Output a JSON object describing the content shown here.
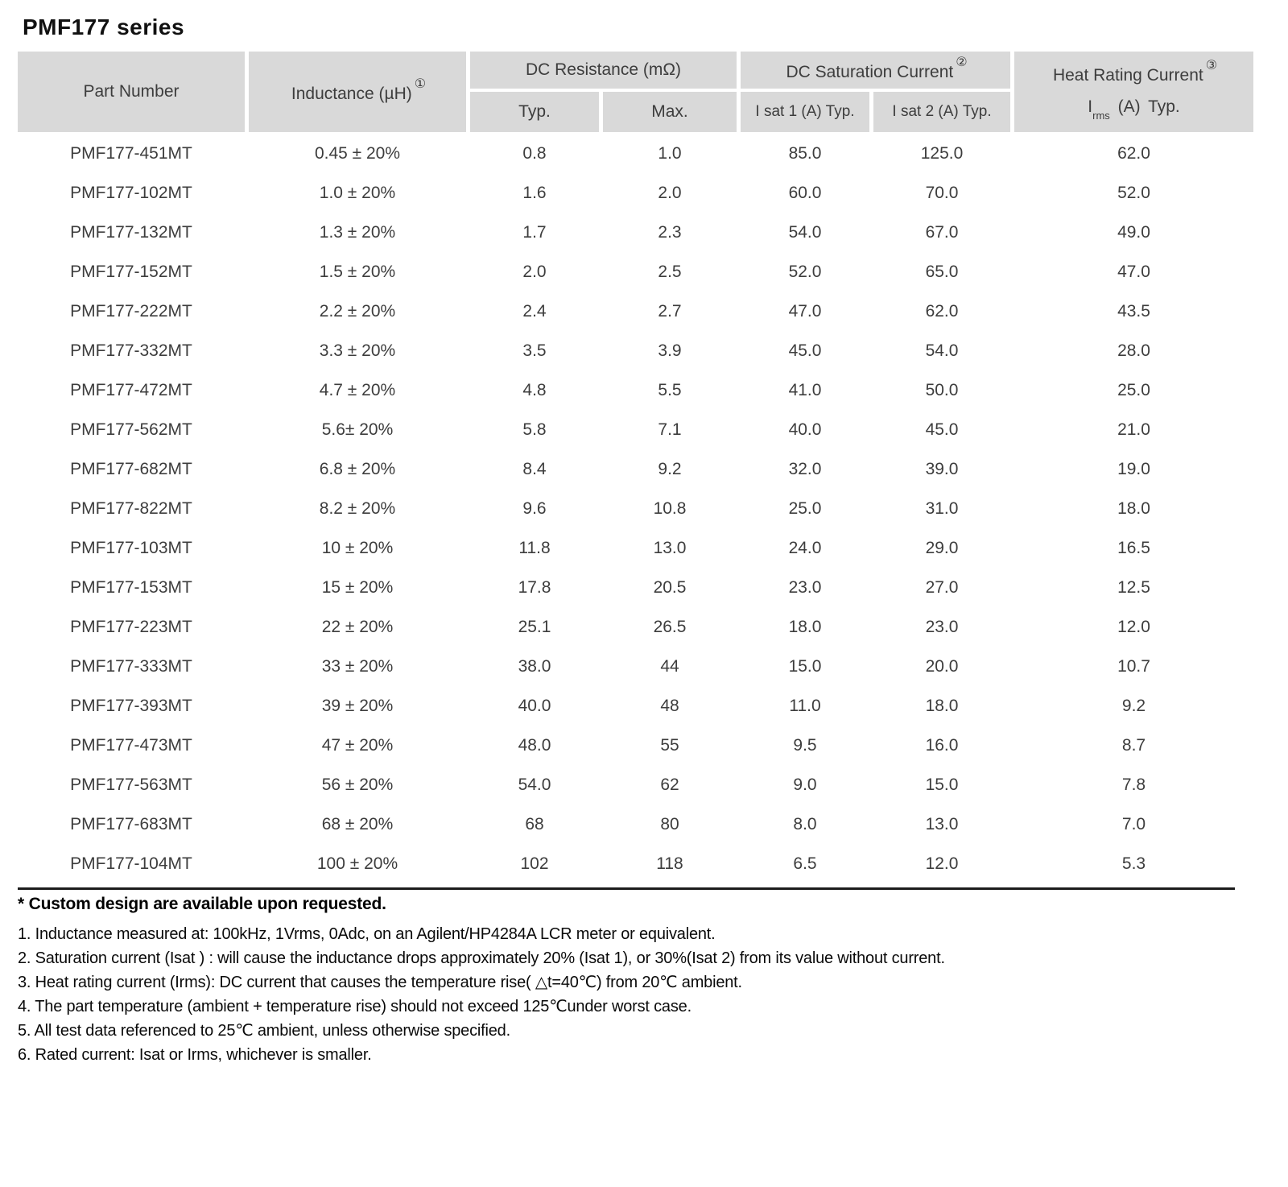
{
  "title": "PMF177 series",
  "colors": {
    "header_bg": "#d9d9d9",
    "body_text": "#3d3d3d",
    "divider": "#1c1c1c"
  },
  "table": {
    "headers": {
      "part_number": "Part Number",
      "inductance": "Inductance (µH)",
      "inductance_sup": "①",
      "dc_resistance": "DC Resistance (mΩ)",
      "dc_resistance_sub": [
        "Typ.",
        "Max."
      ],
      "dc_saturation": "DC Saturation Current",
      "dc_saturation_sup": "②",
      "dc_saturation_sub": [
        "I sat 1  (A)  Typ.",
        "I sat 2  (A)  Typ."
      ],
      "heat_rating": "Heat Rating Current",
      "heat_rating_sup": "③",
      "heat_rating_i": "I",
      "heat_rating_rms": "rms",
      "heat_rating_rest": " (A)   Typ."
    },
    "rows": [
      [
        "PMF177-451MT",
        "0.45 ± 20%",
        "0.8",
        "1.0",
        "85.0",
        "125.0",
        "62.0"
      ],
      [
        "PMF177-102MT",
        "1.0 ± 20%",
        "1.6",
        "2.0",
        "60.0",
        "70.0",
        "52.0"
      ],
      [
        "PMF177-132MT",
        "1.3 ± 20%",
        "1.7",
        "2.3",
        "54.0",
        "67.0",
        "49.0"
      ],
      [
        "PMF177-152MT",
        "1.5 ± 20%",
        "2.0",
        "2.5",
        "52.0",
        "65.0",
        "47.0"
      ],
      [
        "PMF177-222MT",
        "2.2 ± 20%",
        "2.4",
        "2.7",
        "47.0",
        "62.0",
        "43.5"
      ],
      [
        "PMF177-332MT",
        "3.3 ± 20%",
        "3.5",
        "3.9",
        "45.0",
        "54.0",
        "28.0"
      ],
      [
        "PMF177-472MT",
        "4.7 ± 20%",
        "4.8",
        "5.5",
        "41.0",
        "50.0",
        "25.0"
      ],
      [
        "PMF177-562MT",
        "5.6± 20%",
        "5.8",
        "7.1",
        "40.0",
        "45.0",
        "21.0"
      ],
      [
        "PMF177-682MT",
        "6.8 ± 20%",
        "8.4",
        "9.2",
        "32.0",
        "39.0",
        "19.0"
      ],
      [
        "PMF177-822MT",
        "8.2 ± 20%",
        "9.6",
        "10.8",
        "25.0",
        "31.0",
        "18.0"
      ],
      [
        "PMF177-103MT",
        "10 ± 20%",
        "11.8",
        "13.0",
        "24.0",
        "29.0",
        "16.5"
      ],
      [
        "PMF177-153MT",
        "15 ± 20%",
        "17.8",
        "20.5",
        "23.0",
        "27.0",
        "12.5"
      ],
      [
        "PMF177-223MT",
        "22 ± 20%",
        "25.1",
        "26.5",
        "18.0",
        "23.0",
        "12.0"
      ],
      [
        "PMF177-333MT",
        "33 ± 20%",
        "38.0",
        "44",
        "15.0",
        "20.0",
        "10.7"
      ],
      [
        "PMF177-393MT",
        "39 ± 20%",
        "40.0",
        "48",
        "11.0",
        "18.0",
        "9.2"
      ],
      [
        "PMF177-473MT",
        "47 ± 20%",
        "48.0",
        "55",
        "9.5",
        "16.0",
        "8.7"
      ],
      [
        "PMF177-563MT",
        "56 ± 20%",
        "54.0",
        "62",
        "9.0",
        "15.0",
        "7.8"
      ],
      [
        "PMF177-683MT",
        "68 ± 20%",
        "68",
        "80",
        "8.0",
        "13.0",
        "7.0"
      ],
      [
        "PMF177-104MT",
        "100 ± 20%",
        "102",
        "118",
        "6.5",
        "12.0",
        "5.3"
      ]
    ]
  },
  "footnotes": {
    "custom": "* Custom design are available upon requested.",
    "notes": [
      "1. Inductance measured at: 100kHz, 1Vrms, 0Adc, on an Agilent/HP4284A LCR meter or equivalent.",
      "2. Saturation current (Isat ) : will cause the inductance drops approximately 20% (Isat 1), or 30%(Isat 2) from its value without current.",
      "3. Heat rating current (Irms): DC current that causes the temperature rise( △t=40℃) from 20℃ ambient.",
      "4. The part temperature (ambient + temperature rise) should not exceed 125℃under worst case.",
      "5. All test data referenced to 25℃ ambient, unless otherwise specified.",
      "6. Rated current: Isat or Irms, whichever is smaller."
    ]
  }
}
